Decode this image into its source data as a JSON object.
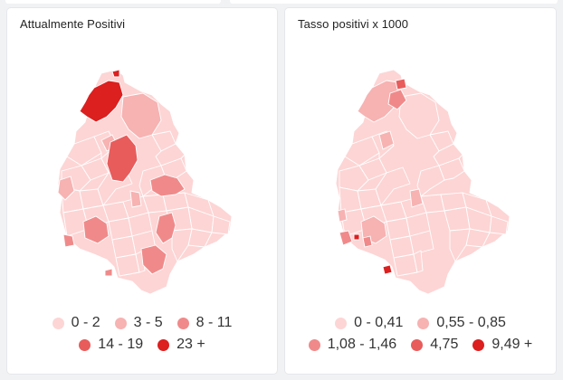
{
  "colors": {
    "class1": "#fdd5d5",
    "class2": "#f7b2b2",
    "class3": "#f08a8a",
    "class4": "#e85c5c",
    "class5": "#dc1f1f"
  },
  "maps": [
    {
      "title": "Attualmente Positivi",
      "legend": [
        {
          "label": "0 - 2",
          "color": "#fdd5d5"
        },
        {
          "label": "3 - 5",
          "color": "#f7b2b2"
        },
        {
          "label": "8 - 11",
          "color": "#f08a8a"
        },
        {
          "label": "14 - 19",
          "color": "#e85c5c"
        },
        {
          "label": "23 +",
          "color": "#dc1f1f"
        }
      ]
    },
    {
      "title": "Tasso positivi x 1000",
      "legend": [
        {
          "label": "0 - 0,41",
          "color": "#fdd5d5"
        },
        {
          "label": "0,55 - 0,85",
          "color": "#f7b2b2"
        },
        {
          "label": "1,08 - 1,46",
          "color": "#f08a8a"
        },
        {
          "label": "4,75",
          "color": "#e85c5c"
        },
        {
          "label": "9,49 +",
          "color": "#dc1f1f"
        }
      ]
    }
  ]
}
